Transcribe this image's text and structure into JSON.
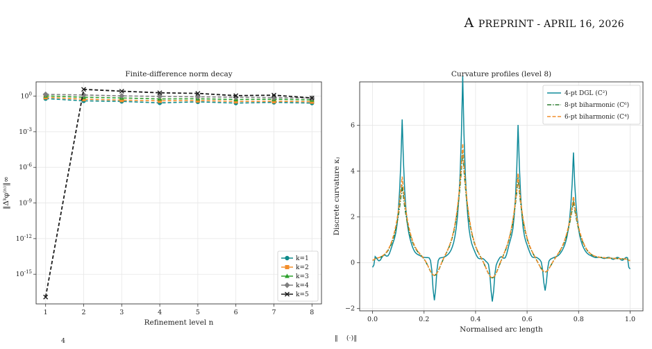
{
  "header": {
    "prefix": "A",
    "rest": "preprint - April 16, 2026"
  },
  "chart_data": [
    {
      "type": "line",
      "title": "Finite-difference norm decay",
      "xlabel": "Refinement level n",
      "ylabel": "‖Δᵏφ⁽ⁿ⁾‖∞",
      "yscale": "log",
      "x": [
        1,
        2,
        3,
        4,
        5,
        6,
        7,
        8
      ],
      "xlim": [
        0.75,
        8.25
      ],
      "ylim_log10": [
        -17.5,
        1.2
      ],
      "xticks": [
        "1",
        "2",
        "3",
        "4",
        "5",
        "6",
        "7",
        "8"
      ],
      "yticks": [
        {
          "value": 0,
          "label": "10^0"
        },
        {
          "value": -3,
          "label": "10^-3"
        },
        {
          "value": -6,
          "label": "10^-6"
        },
        {
          "value": -9,
          "label": "10^-9"
        },
        {
          "value": -12,
          "label": "10^-12"
        },
        {
          "value": -15,
          "label": "10^-15"
        }
      ],
      "grid": true,
      "legend": "lower-right",
      "series": [
        {
          "name": "k=1",
          "color": "#0e8a8a",
          "marker": "circle",
          "values": [
            0.62,
            0.4,
            0.36,
            0.27,
            0.33,
            0.26,
            0.3,
            0.26
          ]
        },
        {
          "name": "k=2",
          "color": "#f28e2b",
          "marker": "square",
          "values": [
            0.8,
            0.55,
            0.46,
            0.4,
            0.43,
            0.36,
            0.37,
            0.34
          ]
        },
        {
          "name": "k=3",
          "color": "#2ca02c",
          "marker": "triangle",
          "values": [
            1.05,
            0.8,
            0.7,
            0.58,
            0.6,
            0.52,
            0.54,
            0.48
          ]
        },
        {
          "name": "k=4",
          "color": "#7f7f7f",
          "marker": "diamond",
          "values": [
            1.4,
            1.25,
            1.05,
            0.95,
            0.88,
            0.8,
            0.74,
            0.68
          ]
        },
        {
          "name": "k=5",
          "color": "#1a1a1a",
          "marker": "x",
          "values": [
            1.2e-17,
            3.7,
            2.6,
            1.9,
            1.7,
            1.1,
            1.2,
            0.7
          ]
        }
      ]
    },
    {
      "type": "line",
      "title": "Curvature profiles (level 8)",
      "xlabel": "Normalised arc length",
      "ylabel": "Discrete curvature κⱼ",
      "xlim": [
        -0.05,
        1.05
      ],
      "ylim": [
        -2.1,
        7.9
      ],
      "xticks": [
        "0.0",
        "0.2",
        "0.4",
        "0.6",
        "0.8",
        "1.0"
      ],
      "yticks": [
        "−2",
        "0",
        "2",
        "4",
        "6"
      ],
      "grid": true,
      "legend": "top-right",
      "peaks": [
        {
          "x": 0.115,
          "dgl": 5.4,
          "bi8": 2.7,
          "bi6": 3.1
        },
        {
          "x": 0.35,
          "dgl": 7.4,
          "bi8": 4.4,
          "bi6": 4.7
        },
        {
          "x": 0.565,
          "dgl": 5.25,
          "bi8": 3.2,
          "bi6": 3.4
        },
        {
          "x": 0.78,
          "dgl": 4.0,
          "bi8": 2.0,
          "bi6": 2.2
        }
      ],
      "valleys": [
        {
          "x": 0.24,
          "dgl": -1.65,
          "bi": -0.6
        },
        {
          "x": 0.465,
          "dgl": -1.65,
          "bi": -0.6
        },
        {
          "x": 0.67,
          "dgl": -1.2,
          "bi": -0.4
        }
      ],
      "series": [
        {
          "name": "4-pt DGL (C²)",
          "color": "#0e8a9a",
          "style": "solid"
        },
        {
          "name": "8-pt biharmonic (C⁶)",
          "color": "#2e7d32",
          "style": "dashdot"
        },
        {
          "name": "6-pt biharmonic (C⁴)",
          "color": "#f28e2b",
          "style": "dashed"
        }
      ]
    }
  ]
}
